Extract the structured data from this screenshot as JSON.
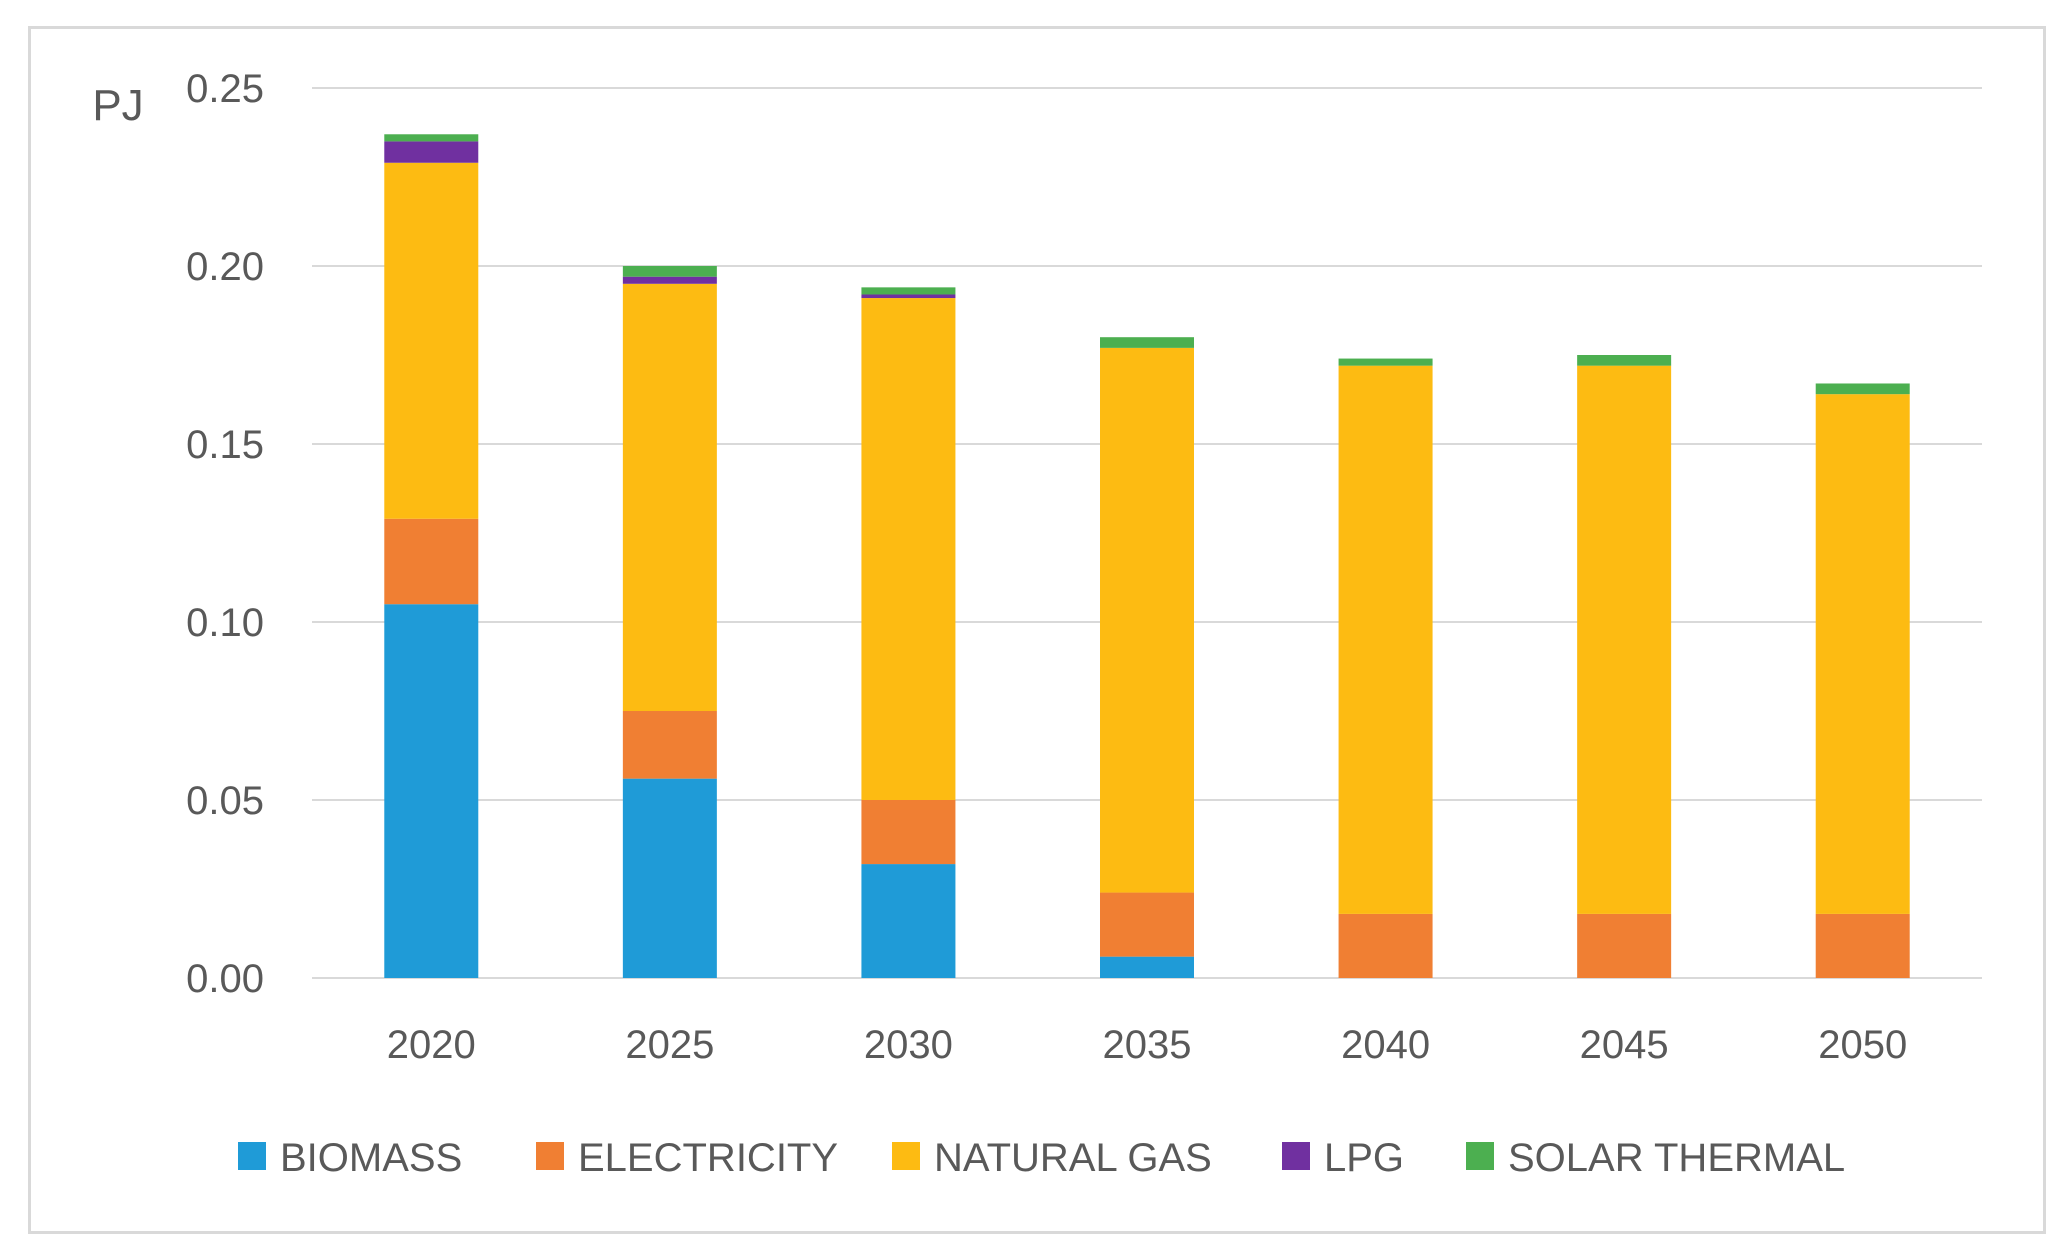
{
  "chart_data": {
    "type": "bar",
    "stacked": true,
    "title": "",
    "xlabel": "",
    "ylabel": "PJ",
    "ylim": [
      0,
      0.25
    ],
    "yticks": [
      "0.00",
      "0.05",
      "0.10",
      "0.15",
      "0.20",
      "0.25"
    ],
    "categories": [
      "2020",
      "2025",
      "2030",
      "2035",
      "2040",
      "2045",
      "2050"
    ],
    "series": [
      {
        "name": "BIOMASS",
        "color": "#1f9bd7",
        "values": [
          0.105,
          0.056,
          0.032,
          0.006,
          0.0,
          0.0,
          0.0
        ]
      },
      {
        "name": "ELECTRICITY",
        "color": "#f07f33",
        "values": [
          0.024,
          0.019,
          0.018,
          0.018,
          0.018,
          0.018,
          0.018
        ]
      },
      {
        "name": "NATURAL GAS",
        "color": "#fdbb12",
        "values": [
          0.1,
          0.12,
          0.141,
          0.153,
          0.154,
          0.154,
          0.146
        ]
      },
      {
        "name": "LPG",
        "color": "#7030a0",
        "values": [
          0.006,
          0.002,
          0.001,
          0.0,
          0.0,
          0.0,
          0.0
        ]
      },
      {
        "name": "SOLAR THERMAL",
        "color": "#4caf50",
        "values": [
          0.002,
          0.003,
          0.002,
          0.003,
          0.002,
          0.003,
          0.003
        ]
      }
    ],
    "grid": true,
    "legend_position": "bottom"
  }
}
